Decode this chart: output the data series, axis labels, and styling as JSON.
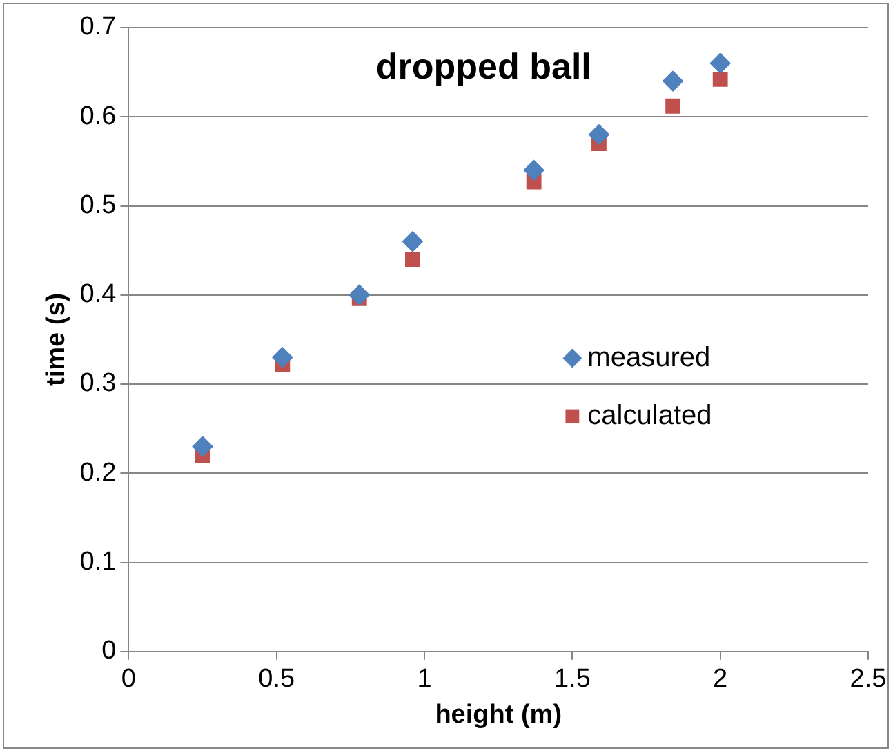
{
  "chart_data": {
    "type": "scatter",
    "title": "dropped ball",
    "xlabel": "height (m)",
    "ylabel": "time (s)",
    "xlim": [
      0,
      2.5
    ],
    "xticks": [
      0,
      0.5,
      1,
      1.5,
      2,
      2.5
    ],
    "ylim": [
      0,
      0.7
    ],
    "yticks": [
      0,
      0.1,
      0.2,
      0.3,
      0.4,
      0.5,
      0.6,
      0.7
    ],
    "grid": "y",
    "legend": "right",
    "series": [
      {
        "name": "measured",
        "color": "#4f81bd",
        "marker": "diamond",
        "x": [
          0.25,
          0.52,
          0.78,
          0.96,
          1.37,
          1.59,
          1.84,
          2.0
        ],
        "values": [
          0.23,
          0.33,
          0.4,
          0.46,
          0.54,
          0.58,
          0.64,
          0.66
        ]
      },
      {
        "name": "calculated",
        "color": "#c0504d",
        "marker": "square",
        "x": [
          0.25,
          0.52,
          0.78,
          0.96,
          1.37,
          1.59,
          1.84,
          2.0
        ],
        "values": [
          0.22,
          0.322,
          0.396,
          0.44,
          0.527,
          0.57,
          0.612,
          0.642
        ]
      }
    ]
  }
}
